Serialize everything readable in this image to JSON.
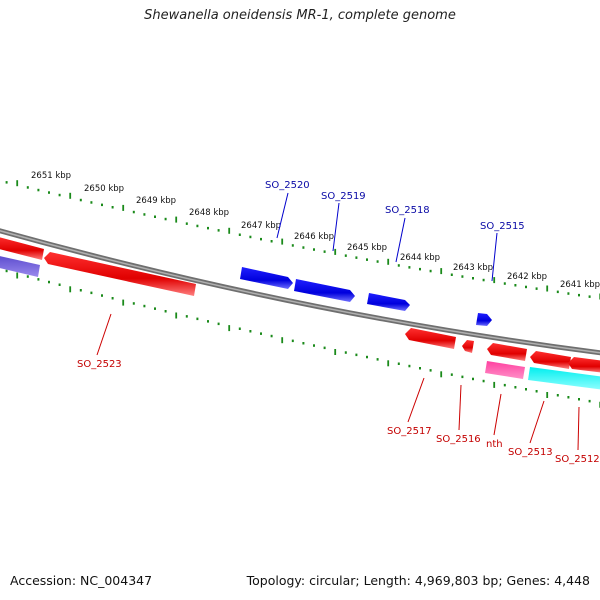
{
  "title": "Shewanella oneidensis MR-1, complete genome",
  "footer": {
    "accession": "Accession: NC_004347",
    "summary": "Topology: circular; Length: 4,969,803 bp; Genes: 4,448"
  },
  "ticks": [
    "2651 kbp",
    "2650 kbp",
    "2649 kbp",
    "2648 kbp",
    "2647 kbp",
    "2646 kbp",
    "2645 kbp",
    "2644 kbp",
    "2643 kbp",
    "2642 kbp",
    "2641 kbp"
  ],
  "genes_top": [
    "SO_2520",
    "SO_2519",
    "SO_2518",
    "SO_2515"
  ],
  "genes_bottom": [
    "SO_2523",
    "SO_2517",
    "SO_2516",
    "nth",
    "SO_2513",
    "SO_2512"
  ],
  "colors": {
    "forward": "#0000ee",
    "reverse": "#ee0000",
    "backbone": "#888888",
    "ticks": "#1a8a1a",
    "magenta": "#ee2288",
    "cyan": "#00e5e5",
    "purple": "#6a5acd"
  }
}
